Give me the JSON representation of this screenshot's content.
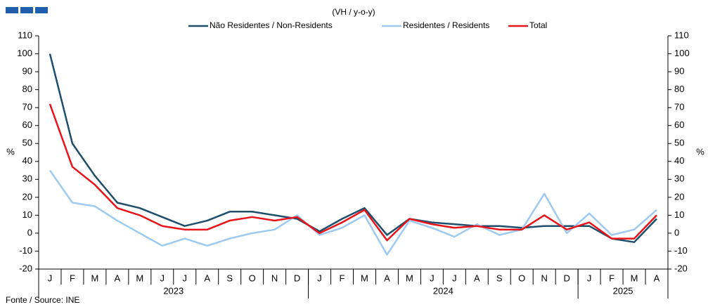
{
  "chart_data": {
    "type": "line",
    "subtitle": "(VH / y-o-y)",
    "source": "Fonte / Source: INE",
    "y_label": "%",
    "y2_label": "%",
    "categories": [
      "J",
      "F",
      "M",
      "A",
      "M",
      "J",
      "J",
      "A",
      "S",
      "O",
      "N",
      "D",
      "J",
      "F",
      "M",
      "A",
      "M",
      "J",
      "J",
      "A",
      "S",
      "O",
      "N",
      "D",
      "J",
      "F",
      "M",
      "A"
    ],
    "groups": [
      {
        "label": "2023",
        "size": 12
      },
      {
        "label": "2024",
        "size": 12
      },
      {
        "label": "2025",
        "size": 4
      }
    ],
    "series": [
      {
        "name": "Não Residentes / Non-Residents",
        "color": "#1f4e6b",
        "values": [
          100,
          50,
          32,
          17,
          14,
          9,
          4,
          7,
          12,
          12,
          10,
          8,
          1,
          8,
          14,
          -1,
          8,
          6,
          5,
          4,
          4,
          3,
          4,
          4,
          4,
          -3,
          -5,
          8
        ]
      },
      {
        "name": "Residentes / Residents",
        "color": "#9dcaf0",
        "values": [
          35,
          17,
          15,
          7,
          0,
          -7,
          -3,
          -7,
          -3,
          0,
          2,
          10,
          -1,
          3,
          10,
          -12,
          7,
          3,
          -2,
          5,
          -1,
          2,
          22,
          0,
          11,
          -1,
          2,
          13
        ]
      },
      {
        "name": "Total",
        "color": "#e8141b",
        "values": [
          72,
          37,
          27,
          14,
          10,
          4,
          2,
          2,
          7,
          9,
          7,
          9,
          0,
          6,
          13,
          -4,
          8,
          5,
          3,
          4,
          2,
          2,
          10,
          2,
          6,
          -3,
          -3,
          10
        ]
      }
    ],
    "ylim": [
      -20,
      110
    ],
    "yticks": [
      -20,
      -10,
      0,
      10,
      20,
      30,
      40,
      50,
      60,
      70,
      80,
      90,
      100,
      110
    ],
    "y2lim": [
      -20,
      110
    ],
    "y2ticks": [
      -20,
      -10,
      0,
      10,
      20,
      30,
      40,
      50,
      60,
      70,
      80,
      90,
      100,
      110
    ]
  }
}
